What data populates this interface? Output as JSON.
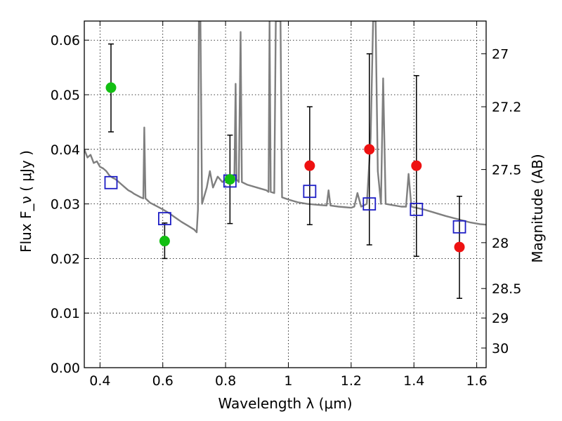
{
  "chart_data": {
    "type": "scatter",
    "xlabel": "Wavelength  λ (μm)",
    "ylabel": "Flux  F_ν  ( μJy )",
    "ylabel_right": "Magnitude (AB)",
    "xlim": [
      0.35,
      1.63
    ],
    "ylim": [
      0.0,
      0.0635
    ],
    "grid": true,
    "x_ticks": [
      0.4,
      0.6,
      0.8,
      1.0,
      1.2,
      1.4,
      1.6
    ],
    "x_tick_labels": [
      "0.4",
      "0.6",
      "0.8",
      "1",
      "1.2",
      "1.4",
      "1.6"
    ],
    "y_ticks": [
      0.0,
      0.01,
      0.02,
      0.03,
      0.04,
      0.05,
      0.06
    ],
    "y_tick_labels": [
      "0.00",
      "0.01",
      "0.02",
      "0.03",
      "0.04",
      "0.05",
      "0.06"
    ],
    "right_ticks": [
      {
        "label": "27",
        "flux": 0.0575
      },
      {
        "label": "27.2",
        "flux": 0.0478
      },
      {
        "label": "27.5",
        "flux": 0.0363
      },
      {
        "label": "28",
        "flux": 0.0229
      },
      {
        "label": "28.5",
        "flux": 0.0145
      },
      {
        "label": "29",
        "flux": 0.0091
      },
      {
        "label": "30",
        "flux": 0.0036
      }
    ],
    "colors": {
      "green": "#13bf13",
      "red": "#ee1111",
      "square": "#1d1dc5",
      "model": "#7f7f7f",
      "errorbar": "#000000"
    },
    "observed": [
      {
        "x": 0.435,
        "y": 0.0513,
        "err_low": 0.0432,
        "err_high": 0.0593,
        "color": "green"
      },
      {
        "x": 0.606,
        "y": 0.0232,
        "err_low": 0.02,
        "err_high": 0.0265,
        "color": "green"
      },
      {
        "x": 0.814,
        "y": 0.0345,
        "err_low": 0.0264,
        "err_high": 0.0426,
        "color": "green"
      },
      {
        "x": 1.068,
        "y": 0.037,
        "err_low": 0.0262,
        "err_high": 0.0478,
        "color": "red"
      },
      {
        "x": 1.258,
        "y": 0.04,
        "err_low": 0.0225,
        "err_high": 0.0575,
        "color": "red"
      },
      {
        "x": 1.408,
        "y": 0.037,
        "err_low": 0.0204,
        "err_high": 0.0535,
        "color": "red"
      },
      {
        "x": 1.545,
        "y": 0.0221,
        "err_low": 0.0127,
        "err_high": 0.0314,
        "color": "red"
      }
    ],
    "model_photometry": [
      {
        "x": 0.435,
        "y": 0.0339
      },
      {
        "x": 0.606,
        "y": 0.0273
      },
      {
        "x": 0.814,
        "y": 0.0342
      },
      {
        "x": 1.068,
        "y": 0.0323
      },
      {
        "x": 1.258,
        "y": 0.03
      },
      {
        "x": 1.408,
        "y": 0.029
      },
      {
        "x": 1.545,
        "y": 0.0258
      }
    ],
    "model_spectrum": [
      [
        0.35,
        0.04
      ],
      [
        0.36,
        0.0385
      ],
      [
        0.37,
        0.039
      ],
      [
        0.38,
        0.0375
      ],
      [
        0.39,
        0.0378
      ],
      [
        0.4,
        0.0368
      ],
      [
        0.41,
        0.0365
      ],
      [
        0.42,
        0.036
      ],
      [
        0.43,
        0.0352
      ],
      [
        0.44,
        0.0348
      ],
      [
        0.45,
        0.0345
      ],
      [
        0.46,
        0.034
      ],
      [
        0.47,
        0.0335
      ],
      [
        0.48,
        0.033
      ],
      [
        0.49,
        0.0325
      ],
      [
        0.5,
        0.0322
      ],
      [
        0.51,
        0.0318
      ],
      [
        0.52,
        0.0315
      ],
      [
        0.53,
        0.0312
      ],
      [
        0.538,
        0.031
      ],
      [
        0.541,
        0.044
      ],
      [
        0.545,
        0.031
      ],
      [
        0.56,
        0.0302
      ],
      [
        0.58,
        0.0296
      ],
      [
        0.6,
        0.029
      ],
      [
        0.62,
        0.0283
      ],
      [
        0.64,
        0.0275
      ],
      [
        0.66,
        0.0267
      ],
      [
        0.68,
        0.026
      ],
      [
        0.7,
        0.0253
      ],
      [
        0.708,
        0.0248
      ],
      [
        0.712,
        0.029
      ],
      [
        0.715,
        0.0635
      ],
      [
        0.72,
        0.0635
      ],
      [
        0.725,
        0.03
      ],
      [
        0.74,
        0.033
      ],
      [
        0.75,
        0.036
      ],
      [
        0.76,
        0.033
      ],
      [
        0.775,
        0.035
      ],
      [
        0.79,
        0.034
      ],
      [
        0.8,
        0.0345
      ],
      [
        0.82,
        0.0345
      ],
      [
        0.828,
        0.0345
      ],
      [
        0.832,
        0.052
      ],
      [
        0.835,
        0.0345
      ],
      [
        0.842,
        0.034
      ],
      [
        0.848,
        0.0615
      ],
      [
        0.852,
        0.034
      ],
      [
        0.87,
        0.0335
      ],
      [
        0.9,
        0.033
      ],
      [
        0.93,
        0.0325
      ],
      [
        0.937,
        0.0322
      ],
      [
        0.94,
        0.0635
      ],
      [
        0.944,
        0.0322
      ],
      [
        0.955,
        0.032
      ],
      [
        0.96,
        0.0635
      ],
      [
        0.975,
        0.0635
      ],
      [
        0.98,
        0.0312
      ],
      [
        1.0,
        0.0308
      ],
      [
        1.03,
        0.0303
      ],
      [
        1.06,
        0.03
      ],
      [
        1.1,
        0.0298
      ],
      [
        1.122,
        0.0297
      ],
      [
        1.128,
        0.0325
      ],
      [
        1.134,
        0.0297
      ],
      [
        1.16,
        0.0295
      ],
      [
        1.2,
        0.0293
      ],
      [
        1.21,
        0.0295
      ],
      [
        1.22,
        0.032
      ],
      [
        1.232,
        0.0295
      ],
      [
        1.25,
        0.03
      ],
      [
        1.262,
        0.042
      ],
      [
        1.27,
        0.0635
      ],
      [
        1.278,
        0.0635
      ],
      [
        1.285,
        0.036
      ],
      [
        1.295,
        0.03
      ],
      [
        1.302,
        0.053
      ],
      [
        1.31,
        0.03
      ],
      [
        1.33,
        0.0298
      ],
      [
        1.36,
        0.0295
      ],
      [
        1.375,
        0.0295
      ],
      [
        1.383,
        0.0355
      ],
      [
        1.392,
        0.0295
      ],
      [
        1.43,
        0.029
      ],
      [
        1.46,
        0.0285
      ],
      [
        1.5,
        0.0278
      ],
      [
        1.54,
        0.0272
      ],
      [
        1.58,
        0.0266
      ],
      [
        1.61,
        0.0263
      ],
      [
        1.63,
        0.0262
      ]
    ]
  }
}
